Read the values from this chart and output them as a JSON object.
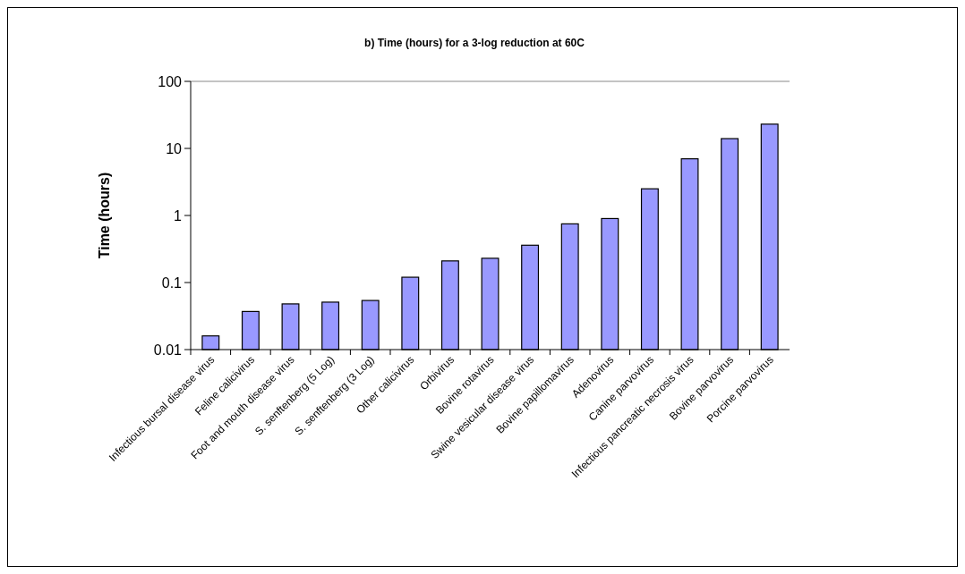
{
  "chart_data": {
    "type": "bar",
    "title": "b) Time (hours) for a 3-log reduction at 60C",
    "ylabel": "Time (hours)",
    "categories": [
      "Infectious bursal disease virus",
      "Feline calicivirus",
      "Foot and mouth disease virus",
      "S. senftenberg (5 Log)",
      "S. senftenberg (3 Log)",
      "Other calicivirus",
      "Orbivirus",
      "Bovine rotavirus",
      "Swine vesicular disease virus",
      "Bovine papillomavirus",
      "Adenovirus",
      "Canine parvovirus",
      "Infectious pancreatic necrosis virus",
      "Bovine parvovirus",
      "Porcine parvovirus"
    ],
    "values": [
      0.016,
      0.037,
      0.048,
      0.051,
      0.054,
      0.12,
      0.21,
      0.23,
      0.36,
      0.75,
      0.9,
      2.5,
      7,
      14,
      23
    ],
    "color": "#9999ff",
    "log": true,
    "ylim": [
      0.01,
      100
    ],
    "yticks": [
      0.01,
      0.1,
      1,
      10,
      100
    ],
    "grid": false
  }
}
